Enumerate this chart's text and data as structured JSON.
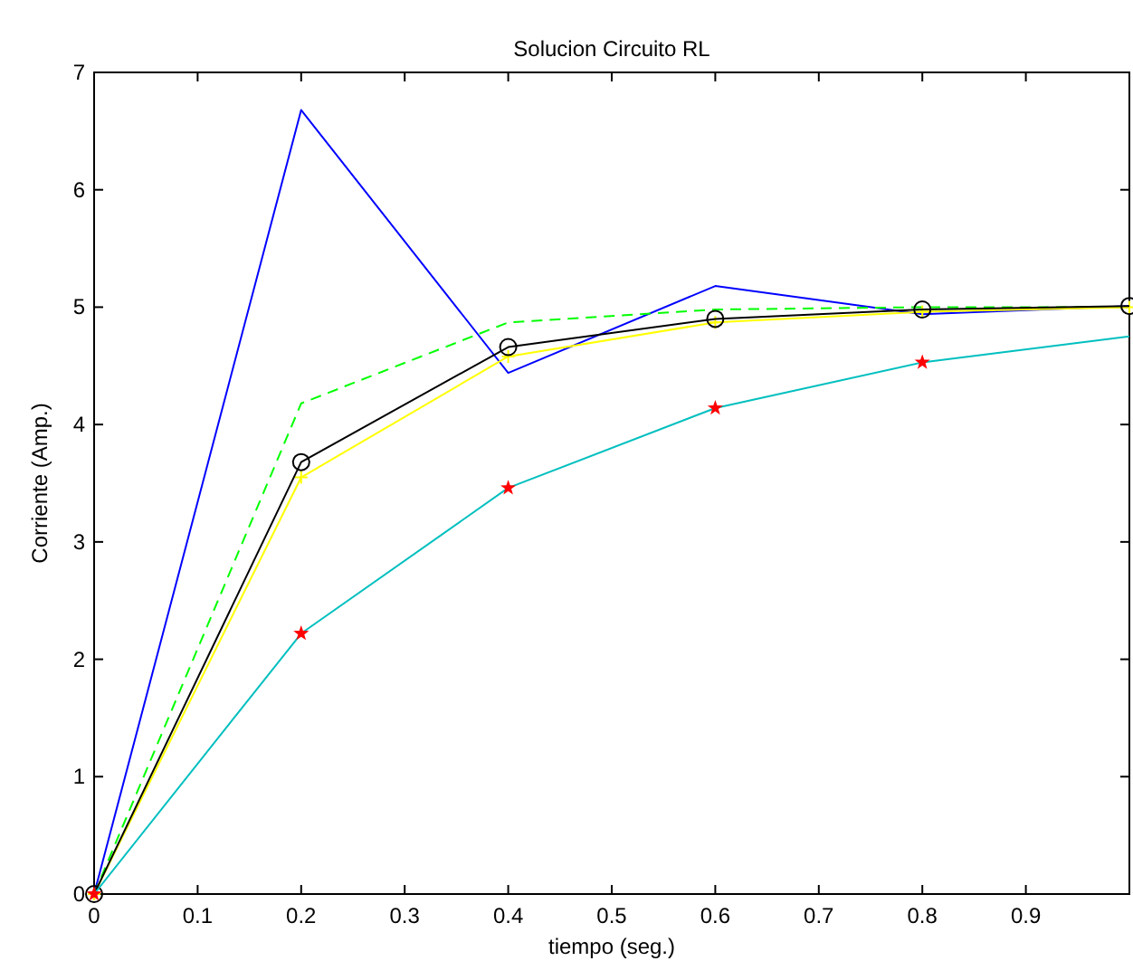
{
  "chart_data": {
    "type": "line",
    "title": "Solucion Circuito RL",
    "xlabel": "tiempo (seg.)",
    "ylabel": "Corriente (Amp.)",
    "x": [
      0,
      0.2,
      0.4,
      0.6,
      0.8,
      1.0
    ],
    "xlim": [
      0,
      1
    ],
    "xticks": [
      0,
      0.1,
      0.2,
      0.3,
      0.4,
      0.5,
      0.6,
      0.7,
      0.8,
      0.9
    ],
    "ylim": [
      0,
      7
    ],
    "yticks": [
      0,
      1,
      2,
      3,
      4,
      5,
      6,
      7
    ],
    "grid": false,
    "series": [
      {
        "color": "#0000ff",
        "values": [
          0,
          6.68,
          4.44,
          5.18,
          4.94,
          5.01
        ],
        "marker": "none",
        "line_style": "solid"
      },
      {
        "color": "#00ff00",
        "values": [
          0,
          4.18,
          4.87,
          4.98,
          5.0,
          5.0
        ],
        "marker": "none",
        "line_style": "dashed"
      },
      {
        "color": "#ffff00",
        "values": [
          0,
          3.55,
          4.58,
          4.87,
          4.96,
          5.0
        ],
        "marker": "cross",
        "line_style": "solid"
      },
      {
        "color": "#000000",
        "values": [
          0,
          3.68,
          4.66,
          4.9,
          4.98,
          5.01
        ],
        "marker": "circle",
        "line_style": "solid"
      },
      {
        "color": "#00bfbf",
        "values": [
          0,
          2.22,
          3.46,
          4.14,
          4.53,
          4.75
        ],
        "marker": "none",
        "line_style": "solid"
      },
      {
        "type": "scatter",
        "color": "#ff0000",
        "x": [
          0,
          0.2,
          0.4,
          0.6,
          0.8
        ],
        "values": [
          0,
          2.22,
          3.46,
          4.14,
          4.53
        ],
        "marker": "star"
      }
    ]
  }
}
